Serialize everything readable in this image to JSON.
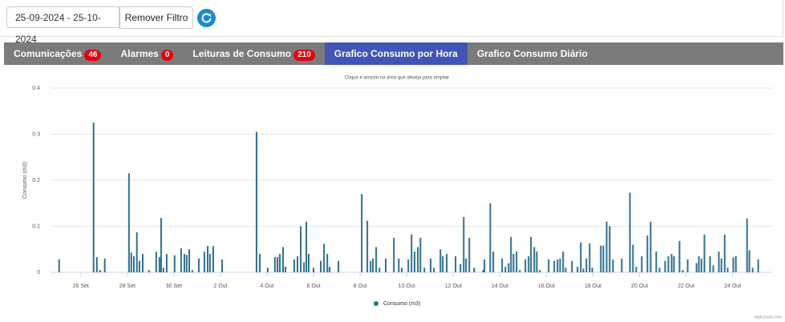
{
  "filter": {
    "date_range": "25-09-2024 - 25-10-2024",
    "button": "Remover Filtro"
  },
  "tabs": [
    {
      "label": "Comunicações",
      "badge": 46
    },
    {
      "label": "Alarmes",
      "badge": 0
    },
    {
      "label": "Leituras de Consumo",
      "badge": 210
    },
    {
      "label": "Grafico Consumo por Hora",
      "active": true
    },
    {
      "label": "Grafico Consumo Diário"
    }
  ],
  "chart_data": {
    "type": "bar",
    "subtitle": "Clique e arraste na área que deseja para ampliar",
    "y_label": "Consumo (m3)",
    "credit": "Highcharts.com",
    "grid": true,
    "ylim": [
      0,
      0.4
    ],
    "yticks": [
      0,
      0.1,
      0.2,
      0.3,
      0.4
    ],
    "xlim": [
      -0.3,
      30.7
    ],
    "xticks": [
      {
        "value": 1,
        "label": "26 Set"
      },
      {
        "value": 3,
        "label": "28 Set"
      },
      {
        "value": 5,
        "label": "30 Set"
      },
      {
        "value": 7,
        "label": "2 Out"
      },
      {
        "value": 9,
        "label": "4 Out"
      },
      {
        "value": 11,
        "label": "6 Out"
      },
      {
        "value": 13,
        "label": "8 Out"
      },
      {
        "value": 15,
        "label": "10 Out"
      },
      {
        "value": 17,
        "label": "12 Out"
      },
      {
        "value": 19,
        "label": "14 Out"
      },
      {
        "value": 21,
        "label": "16 Out"
      },
      {
        "value": 23,
        "label": "18 Out"
      },
      {
        "value": 25,
        "label": "20 Out"
      },
      {
        "value": 27,
        "label": "22 Out"
      },
      {
        "value": 29,
        "label": "24 Out"
      }
    ],
    "series": [
      {
        "name": "Consumo (m3)",
        "color": "#2f6f8f",
        "x": [
          0.07,
          1.55,
          1.69,
          1.83,
          2.03,
          3.07,
          3.17,
          3.28,
          3.41,
          3.52,
          3.66,
          3.93,
          4.24,
          4.38,
          4.45,
          4.55,
          4.69,
          5.03,
          5.31,
          5.45,
          5.55,
          5.66,
          5.79,
          6.07,
          6.31,
          6.45,
          6.55,
          6.69,
          7.07,
          8.55,
          8.69,
          9.03,
          9.34,
          9.45,
          9.55,
          9.69,
          9.79,
          10.17,
          10.31,
          10.45,
          10.59,
          10.69,
          10.79,
          11.0,
          11.31,
          11.45,
          11.59,
          11.69,
          12.07,
          13.07,
          13.31,
          13.45,
          13.55,
          13.69,
          13.83,
          14.1,
          14.45,
          14.66,
          14.79,
          15.07,
          15.21,
          15.34,
          15.48,
          15.59,
          15.76,
          16.03,
          16.17,
          16.45,
          16.55,
          16.72,
          17.1,
          17.31,
          17.45,
          17.55,
          17.69,
          17.9,
          18.28,
          18.34,
          18.59,
          18.72,
          19.1,
          19.24,
          19.38,
          19.48,
          19.59,
          19.72,
          19.86,
          20.1,
          20.24,
          20.34,
          20.48,
          20.59,
          20.72,
          21.1,
          21.34,
          21.48,
          21.59,
          21.72,
          21.83,
          22.1,
          22.34,
          22.48,
          22.59,
          22.72,
          22.86,
          22.97,
          23.34,
          23.45,
          23.59,
          23.72,
          23.86,
          24.24,
          24.59,
          24.72,
          24.86,
          25.1,
          25.34,
          25.48,
          25.72,
          25.86,
          26.1,
          26.24,
          26.38,
          26.48,
          26.72,
          26.86,
          27.07,
          27.45,
          27.55,
          27.66,
          27.79,
          28.03,
          28.17,
          28.41,
          28.52,
          28.66,
          28.79,
          29.03,
          29.14,
          29.62,
          29.72,
          29.86,
          30.1
        ],
        "values": [
          0.028,
          0.325,
          0.033,
          0.005,
          0.03,
          0.215,
          0.043,
          0.035,
          0.087,
          0.025,
          0.04,
          0.005,
          0.045,
          0.033,
          0.118,
          0.01,
          0.04,
          0.037,
          0.052,
          0.04,
          0.038,
          0.05,
          0.005,
          0.03,
          0.045,
          0.057,
          0.04,
          0.057,
          0.028,
          0.305,
          0.04,
          0.01,
          0.033,
          0.033,
          0.04,
          0.055,
          0.012,
          0.028,
          0.035,
          0.1,
          0.022,
          0.11,
          0.04,
          0.01,
          0.025,
          0.062,
          0.04,
          0.012,
          0.025,
          0.17,
          0.112,
          0.025,
          0.03,
          0.055,
          0.01,
          0.03,
          0.075,
          0.03,
          0.01,
          0.028,
          0.082,
          0.045,
          0.055,
          0.075,
          0.01,
          0.03,
          0.01,
          0.05,
          0.035,
          0.04,
          0.035,
          0.018,
          0.12,
          0.03,
          0.075,
          0.01,
          0.005,
          0.028,
          0.15,
          0.045,
          0.03,
          0.012,
          0.02,
          0.077,
          0.04,
          0.045,
          0.005,
          0.028,
          0.035,
          0.077,
          0.055,
          0.045,
          0.005,
          0.028,
          0.025,
          0.028,
          0.03,
          0.045,
          0.01,
          0.025,
          0.012,
          0.065,
          0.008,
          0.03,
          0.063,
          0.01,
          0.058,
          0.058,
          0.11,
          0.1,
          0.028,
          0.03,
          0.173,
          0.06,
          0.012,
          0.035,
          0.08,
          0.11,
          0.045,
          0.01,
          0.025,
          0.035,
          0.04,
          0.035,
          0.068,
          0.005,
          0.028,
          0.02,
          0.035,
          0.03,
          0.082,
          0.035,
          0.015,
          0.045,
          0.03,
          0.082,
          0.01,
          0.032,
          0.035,
          0.117,
          0.048,
          0.01,
          0.028
        ]
      }
    ]
  }
}
